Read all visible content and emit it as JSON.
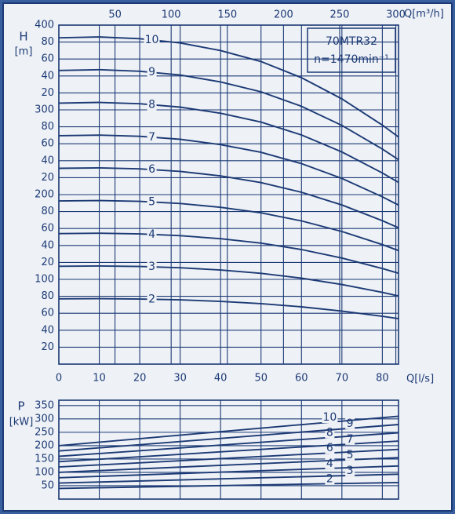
{
  "chart_data": [
    {
      "type": "line",
      "annotations": [
        "70MTR32",
        "n=1470min⁻¹"
      ],
      "y_label": "H",
      "y_unit": "[m]",
      "x_label": "Q[l/s]",
      "x2_label": "Q[m³/h]",
      "color": "#1c3a75",
      "x": [
        0,
        10,
        20,
        30,
        40,
        50,
        60,
        70,
        80,
        84
      ],
      "xlim": [
        0,
        84
      ],
      "xticks": [
        0,
        10,
        20,
        30,
        40,
        50,
        60,
        70,
        80
      ],
      "x2lim": [
        0,
        302.4
      ],
      "x2ticks": [
        50,
        100,
        150,
        200,
        250,
        300
      ],
      "ylim": [
        0,
        400
      ],
      "yticks": [
        20,
        40,
        60,
        80,
        100,
        {
          "value": 120,
          "label": "20"
        },
        {
          "value": 140,
          "label": "40"
        },
        {
          "value": 160,
          "label": "60"
        },
        {
          "value": 180,
          "label": "80"
        },
        200,
        {
          "value": 220,
          "label": "20"
        },
        {
          "value": 240,
          "label": "40"
        },
        {
          "value": 260,
          "label": "60"
        },
        {
          "value": 280,
          "label": "80"
        },
        300,
        {
          "value": 320,
          "label": "20"
        },
        {
          "value": 340,
          "label": "40"
        },
        {
          "value": 360,
          "label": "60"
        },
        {
          "value": 380,
          "label": "80"
        },
        400
      ],
      "grid": true,
      "series": [
        {
          "name": "2",
          "values": [
            77,
            77.2,
            76.8,
            75.8,
            74,
            71.4,
            67.6,
            62.6,
            56.4,
            53.6
          ]
        },
        {
          "name": "3",
          "values": [
            115.5,
            115.8,
            115.2,
            113.7,
            111,
            107.1,
            101.4,
            93.9,
            84.6,
            80.4
          ]
        },
        {
          "name": "4",
          "values": [
            154,
            154.4,
            153.6,
            151.6,
            148,
            142.8,
            135.2,
            125.2,
            112.8,
            107.2
          ]
        },
        {
          "name": "5",
          "values": [
            192.5,
            193,
            192,
            189.5,
            185,
            178.5,
            169,
            156.5,
            141,
            134
          ]
        },
        {
          "name": "6",
          "values": [
            231,
            231.6,
            230.4,
            227.4,
            222,
            214.2,
            202.8,
            187.8,
            169.2,
            160.8
          ]
        },
        {
          "name": "7",
          "values": [
            269.5,
            270.2,
            268.8,
            265.3,
            259,
            249.9,
            236.6,
            219.1,
            197.4,
            187.6
          ]
        },
        {
          "name": "8",
          "values": [
            308,
            308.8,
            307.2,
            303.2,
            296,
            285.6,
            270.4,
            250.4,
            225.6,
            214.4
          ]
        },
        {
          "name": "9",
          "values": [
            346.5,
            347.4,
            345.6,
            341.1,
            333,
            321.3,
            304.2,
            281.7,
            253.8,
            241.2
          ]
        },
        {
          "name": "10",
          "values": [
            385,
            386,
            384,
            379,
            370,
            357,
            338,
            313,
            282,
            268
          ]
        }
      ]
    },
    {
      "type": "line",
      "y_label": "P",
      "y_unit": "[kW]",
      "color": "#1c3a75",
      "x": [
        0,
        84
      ],
      "xlim": [
        0,
        84
      ],
      "ylim": [
        0,
        370
      ],
      "yticks": [
        50,
        100,
        150,
        200,
        250,
        300,
        350
      ],
      "grid": true,
      "series": [
        {
          "name": "2",
          "values": [
            40,
            62
          ]
        },
        {
          "name": "3",
          "values": [
            60,
            93
          ]
        },
        {
          "name": "4",
          "values": [
            80,
            124
          ]
        },
        {
          "name": "5",
          "values": [
            100,
            155
          ]
        },
        {
          "name": "6",
          "values": [
            120,
            186
          ]
        },
        {
          "name": "7",
          "values": [
            140,
            217
          ]
        },
        {
          "name": "8",
          "values": [
            160,
            248
          ]
        },
        {
          "name": "9",
          "values": [
            180,
            279
          ]
        },
        {
          "name": "10",
          "values": [
            200,
            310
          ]
        }
      ]
    }
  ]
}
